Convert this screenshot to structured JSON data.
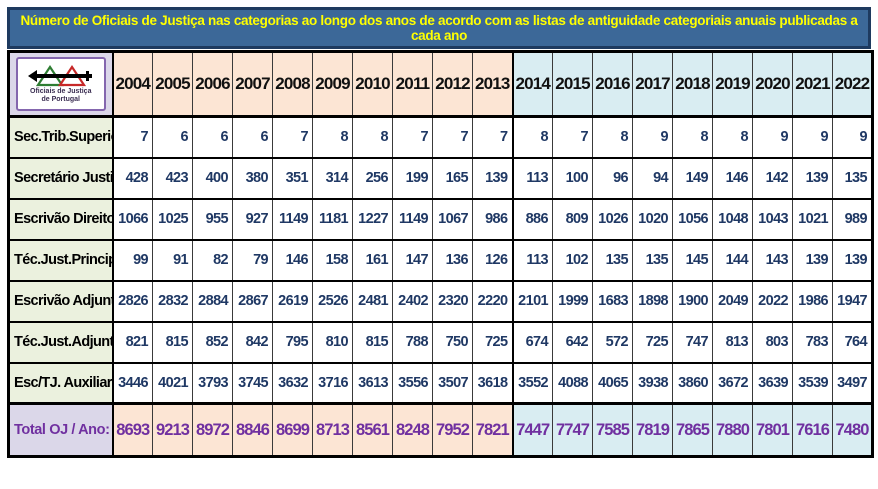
{
  "title": "Número de Oficiais de Justiça nas categorias ao longo dos anos de acordo com as listas de antiguidade categoriais anuais publicadas a cada ano",
  "logo": {
    "icon": "justice-emblem-icon",
    "line1": "Oficiais  de  Justiça",
    "line2": "de  Portugal"
  },
  "colors": {
    "title_bg": "#3c6898",
    "title_text": "#ffff00",
    "border_navy": "#1e3a5f",
    "era1_bg": "#fce5d4",
    "era2_bg": "#d9edf2",
    "label_bg": "#ebf1de",
    "lavender_bg": "#dbd7e9",
    "value_text": "#1f3864",
    "total_text": "#7030a0"
  },
  "chart_data": {
    "type": "table",
    "title": "Número de Oficiais de Justiça nas categorias ao longo dos anos de acordo com as listas de antiguidade categoriais anuais publicadas a cada ano",
    "years": [
      "2004",
      "2005",
      "2006",
      "2007",
      "2008",
      "2009",
      "2010",
      "2011",
      "2012",
      "2013",
      "2014",
      "2015",
      "2016",
      "2017",
      "2018",
      "2019",
      "2020",
      "2021",
      "2022"
    ],
    "era_split_index": 10,
    "rows": [
      {
        "label": "Sec.Trib.Superior",
        "values": [
          7,
          6,
          6,
          6,
          7,
          8,
          8,
          7,
          7,
          7,
          8,
          7,
          8,
          9,
          8,
          8,
          9,
          9,
          9
        ]
      },
      {
        "label": "Secretário Justiça",
        "values": [
          428,
          423,
          400,
          380,
          351,
          314,
          256,
          199,
          165,
          139,
          113,
          100,
          96,
          94,
          149,
          146,
          142,
          139,
          135
        ]
      },
      {
        "label": "Escrivão Direito",
        "values": [
          1066,
          1025,
          955,
          927,
          1149,
          1181,
          1227,
          1149,
          1067,
          986,
          886,
          809,
          1026,
          1020,
          1056,
          1048,
          1043,
          1021,
          989
        ]
      },
      {
        "label": "Téc.Just.Principal",
        "values": [
          99,
          91,
          82,
          79,
          146,
          158,
          161,
          147,
          136,
          126,
          113,
          102,
          135,
          135,
          145,
          144,
          143,
          139,
          139
        ]
      },
      {
        "label": "Escrivão Adjunto",
        "values": [
          2826,
          2832,
          2884,
          2867,
          2619,
          2526,
          2481,
          2402,
          2320,
          2220,
          2101,
          1999,
          1683,
          1898,
          1900,
          2049,
          2022,
          1986,
          1947
        ]
      },
      {
        "label": "Téc.Just.Adjunto",
        "values": [
          821,
          815,
          852,
          842,
          795,
          810,
          815,
          788,
          750,
          725,
          674,
          642,
          572,
          725,
          747,
          813,
          803,
          783,
          764
        ]
      },
      {
        "label": "Esc/TJ. Auxiliares",
        "values": [
          3446,
          4021,
          3793,
          3745,
          3632,
          3716,
          3613,
          3556,
          3507,
          3618,
          3552,
          4088,
          4065,
          3938,
          3860,
          3672,
          3639,
          3539,
          3497
        ]
      }
    ],
    "total": {
      "label": "Total OJ / Ano:",
      "values": [
        8693,
        9213,
        8972,
        8846,
        8699,
        8713,
        8561,
        8248,
        7952,
        7821,
        7447,
        7747,
        7585,
        7819,
        7865,
        7880,
        7801,
        7616,
        7480
      ]
    }
  }
}
